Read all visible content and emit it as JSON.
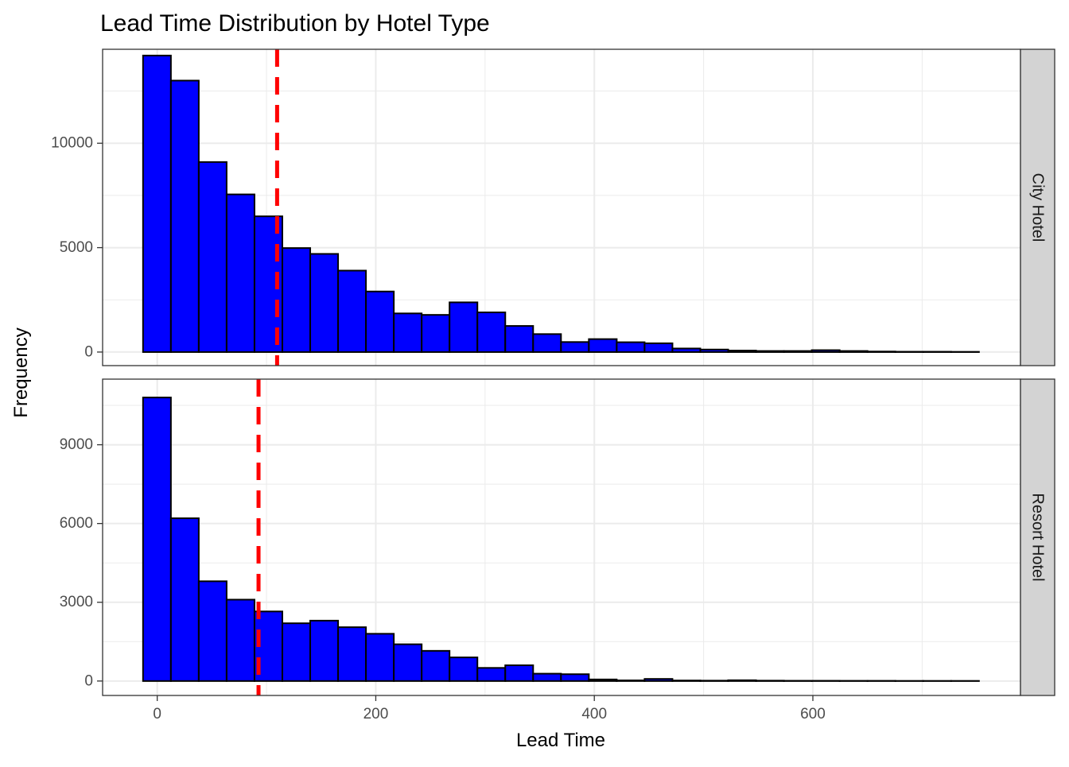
{
  "chart_data": {
    "type": "bar",
    "title": "Lead Time Distribution by Hotel Type",
    "xlabel": "Lead Time",
    "ylabel": "Frequency",
    "grid": true,
    "bar_color": "#0000ff",
    "bar_outline": "#000000",
    "mean_line_color": "#ff0000",
    "strip_color": "#d3d3d3",
    "xlim": [
      -50,
      790
    ],
    "x_ticks": [
      0,
      200,
      400,
      600
    ],
    "bin_width": 25.5,
    "bin_start": -13,
    "panels": [
      {
        "strip_label": "City Hotel",
        "ylim": [
          -650,
          14500
        ],
        "y_ticks": [
          0,
          5000,
          10000
        ],
        "mean_lead_time": 109.7,
        "values": [
          14200,
          13000,
          9100,
          7550,
          6500,
          4980,
          4700,
          3900,
          2900,
          1850,
          1780,
          2380,
          1900,
          1250,
          860,
          480,
          620,
          470,
          420,
          170,
          120,
          70,
          50,
          50,
          90,
          50,
          25,
          15,
          15,
          10
        ]
      },
      {
        "strip_label": "Resort Hotel",
        "ylim": [
          -550,
          11500
        ],
        "y_ticks": [
          0,
          3000,
          6000,
          9000
        ],
        "mean_lead_time": 92.7,
        "values": [
          10800,
          6200,
          3800,
          3100,
          2650,
          2200,
          2300,
          2050,
          1800,
          1400,
          1150,
          900,
          500,
          600,
          280,
          260,
          60,
          25,
          80,
          20,
          15,
          30,
          15,
          10,
          10,
          8,
          8,
          5,
          5,
          5
        ]
      }
    ]
  }
}
